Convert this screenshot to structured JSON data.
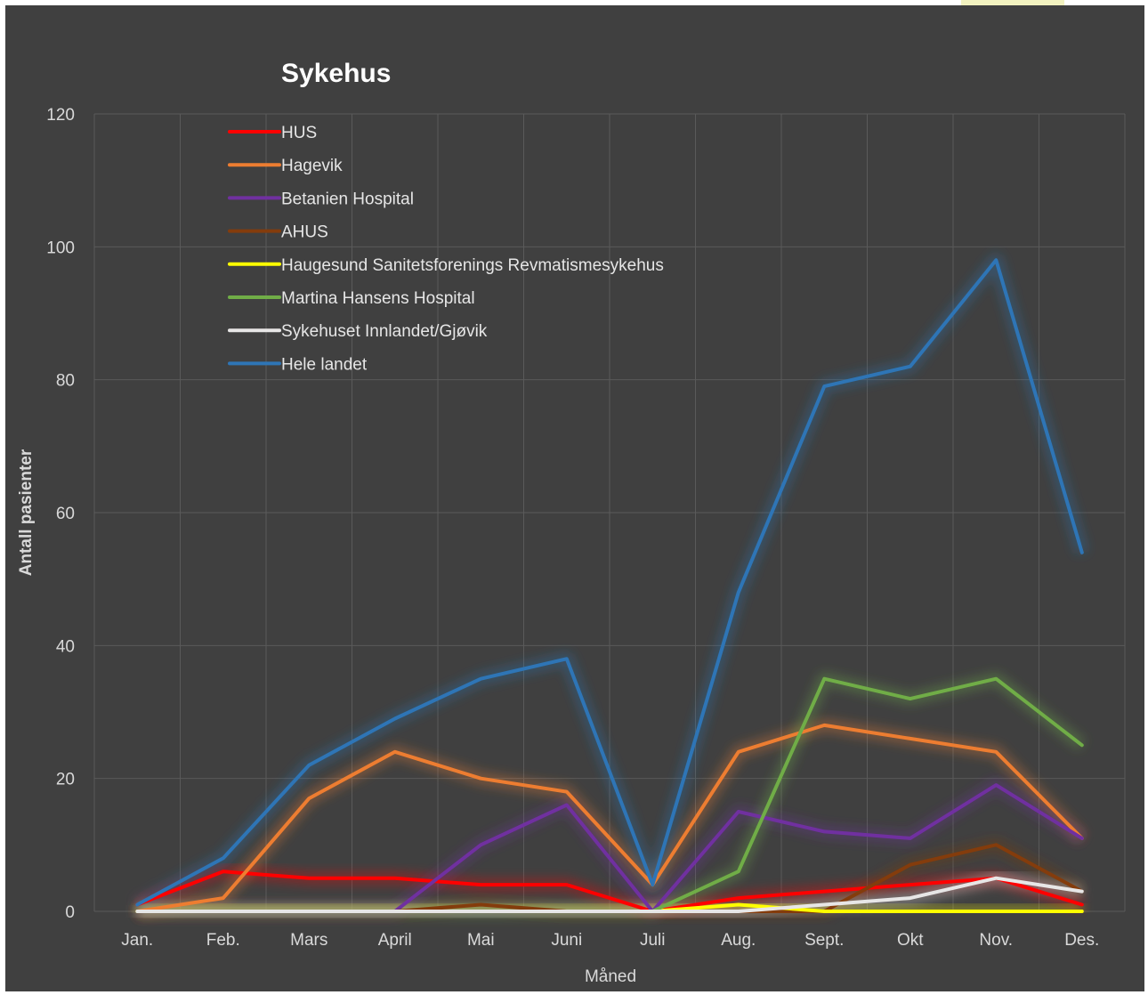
{
  "chart_data": {
    "type": "line",
    "title": "Sykehus",
    "xlabel": "Måned",
    "ylabel": "Antall pasienter",
    "ylim": [
      0,
      120
    ],
    "yticks": [
      0,
      20,
      40,
      60,
      80,
      100,
      120
    ],
    "categories": [
      "Jan.",
      "Feb.",
      "Mars",
      "April",
      "Mai",
      "Juni",
      "Juli",
      "Aug.",
      "Sept.",
      "Okt",
      "Nov.",
      "Des."
    ],
    "grid": true,
    "legend_position": "top-left",
    "series": [
      {
        "name": "HUS",
        "color": "#ff0000",
        "values": [
          1,
          6,
          5,
          5,
          4,
          4,
          0,
          2,
          3,
          4,
          5,
          1
        ]
      },
      {
        "name": "Hagevik",
        "color": "#ed7d31",
        "values": [
          0,
          2,
          17,
          24,
          20,
          18,
          4,
          24,
          28,
          26,
          24,
          11
        ]
      },
      {
        "name": "Betanien Hospital",
        "color": "#7030a0",
        "values": [
          0,
          0,
          0,
          0,
          10,
          16,
          0,
          15,
          12,
          11,
          19,
          11
        ]
      },
      {
        "name": "AHUS",
        "color": "#843c0c",
        "values": [
          0,
          0,
          0,
          0,
          1,
          0,
          0,
          0,
          0,
          7,
          10,
          3
        ]
      },
      {
        "name": "Haugesund Sanitetsforenings Revmatismesykehus",
        "color": "#ffff00",
        "values": [
          0,
          0,
          0,
          0,
          0,
          0,
          0,
          1,
          0,
          0,
          0,
          0
        ]
      },
      {
        "name": "Martina Hansens Hospital",
        "color": "#70ad47",
        "values": [
          0,
          0,
          0,
          0,
          0,
          0,
          0,
          6,
          35,
          32,
          35,
          25
        ]
      },
      {
        "name": "Sykehuset Innlandet/Gjøvik",
        "color": "#e7e6e6",
        "values": [
          0,
          0,
          0,
          0,
          0,
          0,
          0,
          0,
          1,
          2,
          5,
          3
        ]
      },
      {
        "name": "Hele landet",
        "color": "#2e75b6",
        "values": [
          1,
          8,
          22,
          29,
          35,
          38,
          4,
          48,
          79,
          82,
          98,
          54
        ]
      }
    ]
  }
}
